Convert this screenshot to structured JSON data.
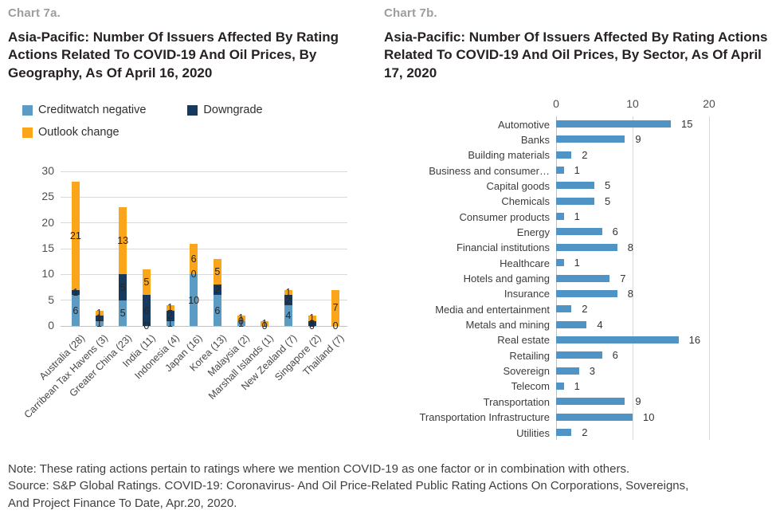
{
  "colors": {
    "creditwatch_blue": "#5b9bc4",
    "downgrade_navy": "#17395e",
    "outlook_orange": "#fba51a",
    "sector_bar_blue": "#4f94c4",
    "gridline": "#d9d9d9",
    "axis_line": "#c2c2c2",
    "eyebrow_gray": "#9d9d9d",
    "title_dark": "#272122",
    "tick_text": "#4f4f4f",
    "footer_text": "#3f3f3f"
  },
  "chart_a": {
    "eyebrow": "Chart 7a.",
    "title": "Asia-Pacific: Number Of Issuers Affected By Rating Actions Related To COVID-19 And Oil Prices, By Geography, As Of April 16, 2020"
  },
  "chart_b": {
    "eyebrow": "Chart 7b.",
    "title": "Asia-Pacific: Number Of Issuers Affected By Rating Actions Related To COVID-19 And Oil Prices, By Sector, As Of April 17, 2020"
  },
  "footer": {
    "lines": [
      "Note: These rating actions pertain to ratings where we mention COVID-19 as one factor or in combination with others.",
      "Source: S&P Global Ratings. COVID-19: Coronavirus- And Oil Price-Related Public Rating Actions On Corporations, Sovereigns,",
      "And Project Finance To Date, Apr.20, 2020."
    ]
  },
  "chart_data": [
    {
      "type": "bar",
      "subtype": "stacked-column",
      "title": "Asia-Pacific: Number Of Issuers Affected By Rating Actions Related To COVID-19 And Oil Prices, By Geography, As Of April 16, 2020",
      "categories": [
        "Australia (28)",
        "Carribean Tax Havens (3)",
        "Greater China (23)",
        "India (11)",
        "Indonesia (4)",
        "Japan (16)",
        "Korea (13)",
        "Malaysia (2)",
        "Marshall Islands (1)",
        "New Zealand (7)",
        "Singapore (2)",
        "Thailand (7)"
      ],
      "series": [
        {
          "name": "Creditwatch negative",
          "color": "#5b9bc4",
          "values": [
            6,
            1,
            5,
            0,
            1,
            10,
            6,
            1,
            0,
            4,
            0,
            0
          ]
        },
        {
          "name": "Downgrade",
          "color": "#17395e",
          "values": [
            1,
            1,
            5,
            6,
            2,
            0,
            2,
            0,
            0,
            2,
            1,
            0
          ]
        },
        {
          "name": "Outlook change",
          "color": "#fba51a",
          "values": [
            21,
            1,
            13,
            5,
            1,
            6,
            5,
            1,
            1,
            1,
            1,
            7
          ]
        }
      ],
      "totals": [
        28,
        3,
        23,
        11,
        4,
        16,
        13,
        2,
        1,
        7,
        2,
        7
      ],
      "ylim": [
        0,
        30
      ],
      "ytick_step": 5,
      "grid": true,
      "legend_position": "top",
      "data_labels": true
    },
    {
      "type": "bar",
      "subtype": "horizontal",
      "title": "Asia-Pacific: Number Of Issuers Affected By Rating Actions Related To COVID-19 And Oil Prices, By Sector, As Of April 17, 2020",
      "categories": [
        "Automotive",
        "Banks",
        "Building materials",
        "Business and consumer…",
        "Capital goods",
        "Chemicals",
        "Consumer products",
        "Energy",
        "Financial institutions",
        "Healthcare",
        "Hotels and gaming",
        "Insurance",
        "Media and entertainment",
        "Metals and mining",
        "Real estate",
        "Retailing",
        "Sovereign",
        "Telecom",
        "Transportation",
        "Transportation Infrastructure",
        "Utilities"
      ],
      "values": [
        15,
        9,
        2,
        1,
        5,
        5,
        1,
        6,
        8,
        1,
        7,
        8,
        2,
        4,
        16,
        6,
        3,
        1,
        9,
        10,
        2
      ],
      "bar_color": "#4f94c4",
      "xlim": [
        0,
        20
      ],
      "xticks": [
        0,
        10,
        20
      ],
      "axis_position": "top",
      "grid": true,
      "data_labels": true
    }
  ]
}
